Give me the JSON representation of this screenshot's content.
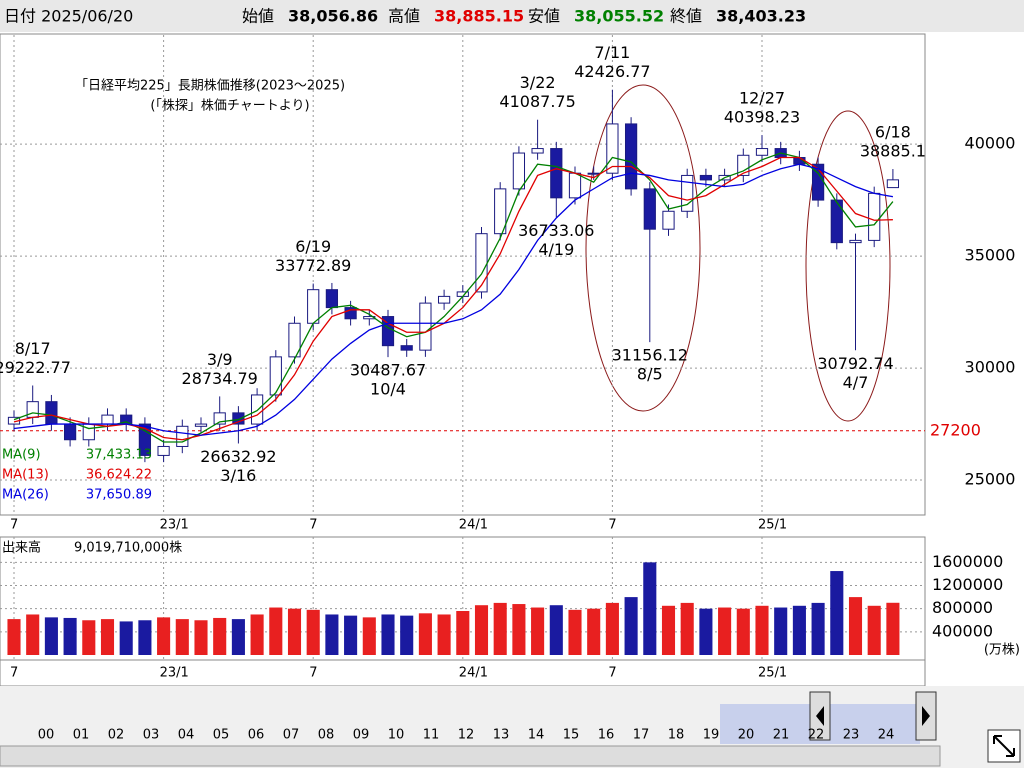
{
  "header": {
    "date": "日付 2025/06/20",
    "fields": [
      {
        "name": "始値",
        "value": "38,056.86",
        "color": "#000000"
      },
      {
        "name": "高値",
        "value": "38,885.15",
        "color": "#e00000"
      },
      {
        "name": "安値",
        "value": "38,055.52",
        "color": "#008000"
      },
      {
        "name": "終値",
        "value": "38,403.23",
        "color": "#000000"
      }
    ]
  },
  "chart_data": [
    {
      "type": "candlestick",
      "title": "「日経平均225」長期株価推移(2023～2025)",
      "subtitle": "(「株探」株価チャートより)",
      "categories": [
        "7",
        null,
        null,
        null,
        null,
        null,
        null,
        null,
        "23/1",
        null,
        null,
        null,
        null,
        null,
        null,
        null,
        "7",
        null,
        null,
        null,
        null,
        null,
        null,
        null,
        "24/1",
        null,
        null,
        null,
        null,
        null,
        null,
        null,
        "7",
        null,
        null,
        null,
        null,
        null,
        null,
        null,
        "25/1",
        null,
        null,
        null,
        null,
        null,
        null,
        null
      ],
      "open": [
        27500,
        27800,
        28500,
        27500,
        26800,
        27500,
        27900,
        27500,
        26100,
        26500,
        27400,
        27500,
        28000,
        27500,
        28800,
        30500,
        32000,
        33500,
        32700,
        32200,
        32300,
        31000,
        30800,
        32900,
        33200,
        33400,
        36000,
        38000,
        39600,
        39800,
        37600,
        38700,
        38700,
        40900,
        38000,
        36200,
        37000,
        38600,
        38400,
        38600,
        39500,
        39800,
        39400,
        39100,
        37500,
        35600,
        35700,
        38056.86
      ],
      "high": [
        28100,
        29222.77,
        28800,
        27800,
        27800,
        28200,
        28200,
        27800,
        26800,
        27700,
        27800,
        28734.79,
        28300,
        29100,
        30800,
        32300,
        33772.89,
        33800,
        33000,
        32600,
        32600,
        31300,
        33200,
        33500,
        33700,
        36300,
        38300,
        39900,
        41087.75,
        40100,
        39000,
        39000,
        42426.77,
        41200,
        38300,
        37300,
        38900,
        38900,
        38900,
        39800,
        40398.23,
        40100,
        39700,
        39400,
        37800,
        36000,
        38100,
        38885.15
      ],
      "low": [
        27200,
        27500,
        27200,
        26500,
        26500,
        27200,
        27200,
        25800,
        25800,
        26200,
        27100,
        27200,
        26632.92,
        27200,
        28500,
        30200,
        31700,
        32400,
        31900,
        31900,
        30487.67,
        30500,
        30500,
        32600,
        32900,
        33100,
        35700,
        37700,
        39300,
        36733.06,
        37300,
        38400,
        38400,
        37700,
        31156.12,
        35900,
        36700,
        38100,
        38100,
        38300,
        39200,
        39100,
        38800,
        37200,
        35300,
        30792.74,
        35400,
        38055.52
      ],
      "close": [
        27800,
        28500,
        27500,
        26800,
        27500,
        27900,
        27500,
        26100,
        26500,
        27400,
        27500,
        28000,
        27500,
        28800,
        30500,
        32000,
        33500,
        32700,
        32200,
        32300,
        31000,
        30800,
        32900,
        33200,
        33400,
        36000,
        38000,
        39600,
        39800,
        37600,
        38700,
        38700,
        40900,
        38000,
        36200,
        37000,
        38600,
        38400,
        38600,
        39500,
        39800,
        39400,
        39100,
        37500,
        35600,
        35700,
        37800,
        38403.23
      ],
      "up_color": "#ffffff",
      "down_color": "#1a1aa0",
      "edge_color": "#1a1a80",
      "series": [
        {
          "name": "MA(9)",
          "color": "#008000",
          "current_label": "37,433.13",
          "values": [
            27700,
            28000,
            27900,
            27600,
            27300,
            27400,
            27600,
            27200,
            26700,
            26700,
            27100,
            27600,
            27700,
            28100,
            28900,
            30400,
            32000,
            32700,
            32800,
            32400,
            31800,
            31400,
            31600,
            32300,
            33200,
            34200,
            35800,
            37900,
            39100,
            39000,
            38700,
            38300,
            39400,
            39200,
            38400,
            37100,
            37300,
            38000,
            38500,
            38800,
            39300,
            39600,
            39400,
            38700,
            37400,
            36300,
            36400,
            37433.13
          ]
        },
        {
          "name": "MA(13)",
          "color": "#e00000",
          "current_label": "36,624.22",
          "values": [
            27600,
            27800,
            27900,
            27700,
            27500,
            27400,
            27500,
            27300,
            26900,
            26800,
            27000,
            27300,
            27600,
            27900,
            28600,
            29700,
            31200,
            32300,
            32600,
            32600,
            32000,
            31600,
            31600,
            32000,
            32700,
            33700,
            35100,
            37000,
            38600,
            38900,
            38700,
            38500,
            39000,
            39000,
            38500,
            37700,
            37500,
            37700,
            38200,
            38700,
            39000,
            39400,
            39400,
            38900,
            37900,
            36900,
            36600,
            36624.22
          ]
        },
        {
          "name": "MA(26)",
          "color": "#0000e0",
          "current_label": "37,650.89",
          "values": [
            27300,
            27400,
            27500,
            27500,
            27500,
            27500,
            27500,
            27400,
            27200,
            27100,
            27000,
            27100,
            27200,
            27400,
            27900,
            28600,
            29500,
            30400,
            31100,
            31700,
            32000,
            32000,
            32000,
            32000,
            32200,
            32600,
            33300,
            34400,
            35700,
            36700,
            37500,
            38000,
            38500,
            38700,
            38600,
            38400,
            38300,
            38200,
            38100,
            38200,
            38600,
            38900,
            39100,
            38900,
            38500,
            38100,
            37800,
            37650.89
          ]
        }
      ],
      "annotations": [
        {
          "date": "8/17",
          "value": 29222.77
        },
        {
          "date": "3/9",
          "value": 28734.79
        },
        {
          "date": "3/16",
          "value": 26632.92
        },
        {
          "date": "6/19",
          "value": 33772.89
        },
        {
          "date": "10/4",
          "value": 30487.67
        },
        {
          "date": "3/22",
          "value": 41087.75
        },
        {
          "date": "4/19",
          "value": 36733.06
        },
        {
          "date": "7/11",
          "value": 42426.77
        },
        {
          "date": "8/5",
          "value": 31156.12
        },
        {
          "date": "12/27",
          "value": 40398.23
        },
        {
          "date": "4/7",
          "value": 30792.74
        },
        {
          "date": "6/18",
          "value": 38885.15,
          "label": "38885.1"
        }
      ],
      "price_line": {
        "value": 27200,
        "color": "#e00000"
      },
      "ylim": [
        23440,
        44870
      ],
      "yticks": [
        25000,
        30000,
        35000,
        40000
      ],
      "grid": true
    },
    {
      "type": "volume",
      "title": "出来高",
      "current_label": "9,019,710,000株",
      "unit": "(万株)",
      "up_color": "#e82020",
      "down_color": "#1a1aa0",
      "values": [
        620000,
        700000,
        650000,
        640000,
        600000,
        620000,
        580000,
        600000,
        650000,
        620000,
        600000,
        640000,
        620000,
        700000,
        820000,
        800000,
        780000,
        700000,
        680000,
        650000,
        700000,
        680000,
        720000,
        700000,
        760000,
        860000,
        900000,
        880000,
        820000,
        860000,
        780000,
        800000,
        900000,
        1000000,
        1600000,
        850000,
        900000,
        800000,
        820000,
        800000,
        850000,
        820000,
        850000,
        900000,
        1450000,
        1000000,
        850000,
        901971
      ],
      "ylim": [
        0,
        1900000
      ],
      "yticks": [
        400000,
        800000,
        1200000,
        1600000
      ],
      "grid": true
    }
  ],
  "navigator": {
    "years": [
      "00",
      "01",
      "02",
      "03",
      "04",
      "05",
      "06",
      "07",
      "08",
      "09",
      "10",
      "11",
      "12",
      "13",
      "14",
      "15",
      "16",
      "17",
      "18",
      "19",
      "20",
      "21",
      "22",
      "23",
      "24"
    ]
  }
}
